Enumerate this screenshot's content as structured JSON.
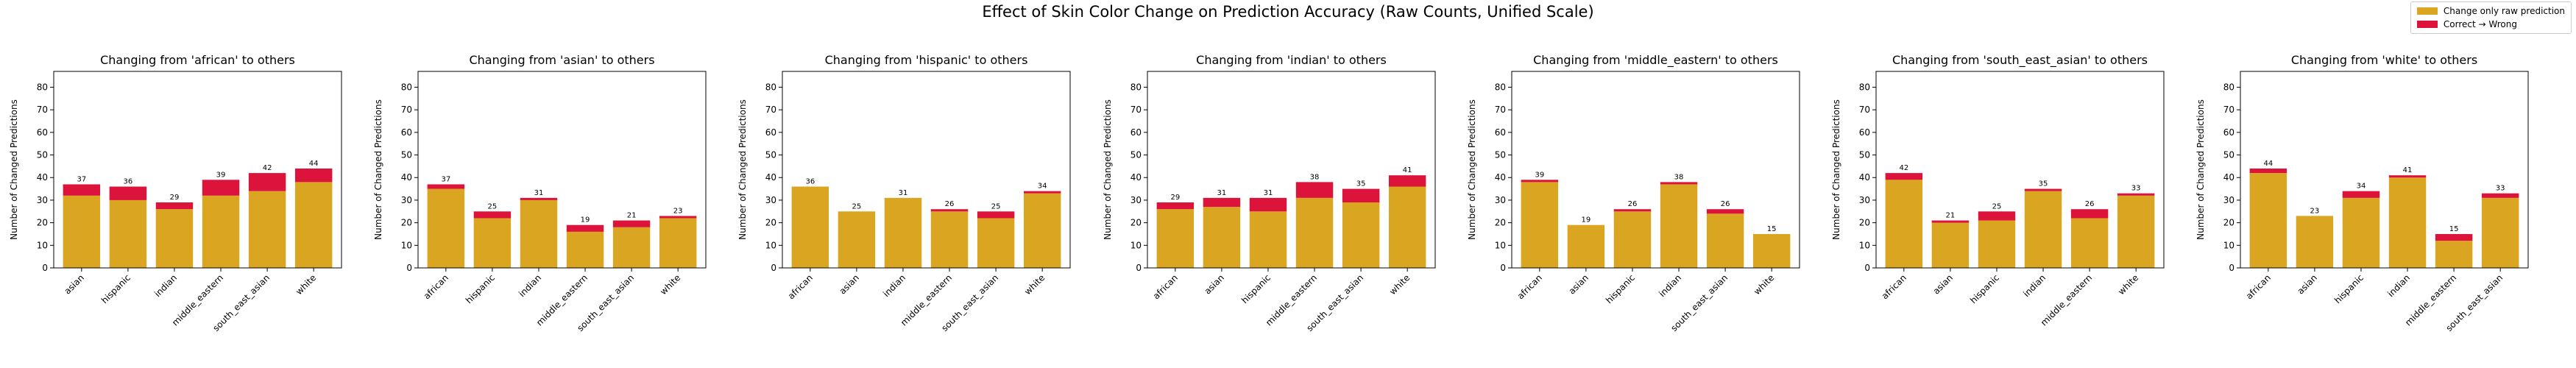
{
  "figure": {
    "suptitle": "Effect of Skin Color Change on Prediction Accuracy (Raw Counts, Unified Scale)",
    "legend": [
      {
        "label": "Change only raw prediction",
        "color": "#DAA520"
      },
      {
        "label": "Correct → Wrong",
        "color": "#DC143C"
      }
    ]
  },
  "chart_data": [
    {
      "type": "bar",
      "stacked": true,
      "title": "Changing from 'african' to others",
      "xlabel": "",
      "ylabel": "Number of Changed Predictions",
      "ylim": [
        0,
        87
      ],
      "yticks": [
        0,
        10,
        20,
        30,
        40,
        50,
        60,
        70,
        80
      ],
      "categories": [
        "asian",
        "hispanic",
        "indian",
        "middle_eastern",
        "south_east_asian",
        "white"
      ],
      "series": [
        {
          "name": "Change only raw prediction",
          "values": [
            32,
            30,
            26,
            32,
            34,
            38
          ]
        },
        {
          "name": "Correct → Wrong",
          "values": [
            5,
            6,
            3,
            7,
            8,
            6
          ]
        }
      ],
      "labels": [
        37,
        36,
        29,
        39,
        42,
        44
      ]
    },
    {
      "type": "bar",
      "stacked": true,
      "title": "Changing from 'asian' to others",
      "xlabel": "",
      "ylabel": "Number of Changed Predictions",
      "ylim": [
        0,
        87
      ],
      "yticks": [
        0,
        10,
        20,
        30,
        40,
        50,
        60,
        70,
        80
      ],
      "categories": [
        "african",
        "hispanic",
        "indian",
        "middle_eastern",
        "south_east_asian",
        "white"
      ],
      "series": [
        {
          "name": "Change only raw prediction",
          "values": [
            35,
            22,
            30,
            16,
            18,
            22
          ]
        },
        {
          "name": "Correct → Wrong",
          "values": [
            2,
            3,
            1,
            3,
            3,
            1
          ]
        }
      ],
      "labels": [
        37,
        25,
        31,
        19,
        21,
        23
      ]
    },
    {
      "type": "bar",
      "stacked": true,
      "title": "Changing from 'hispanic' to others",
      "xlabel": "",
      "ylabel": "Number of Changed Predictions",
      "ylim": [
        0,
        87
      ],
      "yticks": [
        0,
        10,
        20,
        30,
        40,
        50,
        60,
        70,
        80
      ],
      "categories": [
        "african",
        "asian",
        "indian",
        "middle_eastern",
        "south_east_asian",
        "white"
      ],
      "series": [
        {
          "name": "Change only raw prediction",
          "values": [
            36,
            25,
            31,
            25,
            22,
            33
          ]
        },
        {
          "name": "Correct → Wrong",
          "values": [
            0,
            0,
            0,
            1,
            3,
            1
          ]
        }
      ],
      "labels": [
        36,
        25,
        31,
        26,
        25,
        34
      ]
    },
    {
      "type": "bar",
      "stacked": true,
      "title": "Changing from 'indian' to others",
      "xlabel": "",
      "ylabel": "Number of Changed Predictions",
      "ylim": [
        0,
        87
      ],
      "yticks": [
        0,
        10,
        20,
        30,
        40,
        50,
        60,
        70,
        80
      ],
      "categories": [
        "african",
        "asian",
        "hispanic",
        "middle_eastern",
        "south_east_asian",
        "white"
      ],
      "series": [
        {
          "name": "Change only raw prediction",
          "values": [
            26,
            27,
            25,
            31,
            29,
            36
          ]
        },
        {
          "name": "Correct → Wrong",
          "values": [
            3,
            4,
            6,
            7,
            6,
            5
          ]
        }
      ],
      "labels": [
        29,
        31,
        31,
        38,
        35,
        41
      ]
    },
    {
      "type": "bar",
      "stacked": true,
      "title": "Changing from 'middle_eastern' to others",
      "xlabel": "",
      "ylabel": "Number of Changed Predictions",
      "ylim": [
        0,
        87
      ],
      "yticks": [
        0,
        10,
        20,
        30,
        40,
        50,
        60,
        70,
        80
      ],
      "categories": [
        "african",
        "asian",
        "hispanic",
        "indian",
        "south_east_asian",
        "white"
      ],
      "series": [
        {
          "name": "Change only raw prediction",
          "values": [
            38,
            19,
            25,
            37,
            24,
            15
          ]
        },
        {
          "name": "Correct → Wrong",
          "values": [
            1,
            0,
            1,
            1,
            2,
            0
          ]
        }
      ],
      "labels": [
        39,
        19,
        26,
        38,
        26,
        15
      ]
    },
    {
      "type": "bar",
      "stacked": true,
      "title": "Changing from 'south_east_asian' to others",
      "xlabel": "",
      "ylabel": "Number of Changed Predictions",
      "ylim": [
        0,
        87
      ],
      "yticks": [
        0,
        10,
        20,
        30,
        40,
        50,
        60,
        70,
        80
      ],
      "categories": [
        "african",
        "asian",
        "hispanic",
        "indian",
        "middle_eastern",
        "white"
      ],
      "series": [
        {
          "name": "Change only raw prediction",
          "values": [
            39,
            20,
            21,
            34,
            22,
            32
          ]
        },
        {
          "name": "Correct → Wrong",
          "values": [
            3,
            1,
            4,
            1,
            4,
            1
          ]
        }
      ],
      "labels": [
        42,
        21,
        25,
        35,
        26,
        33
      ]
    },
    {
      "type": "bar",
      "stacked": true,
      "title": "Changing from 'white' to others",
      "xlabel": "",
      "ylabel": "Number of Changed Predictions",
      "ylim": [
        0,
        87
      ],
      "yticks": [
        0,
        10,
        20,
        30,
        40,
        50,
        60,
        70,
        80
      ],
      "categories": [
        "african",
        "asian",
        "hispanic",
        "indian",
        "middle_eastern",
        "south_east_asian"
      ],
      "series": [
        {
          "name": "Change only raw prediction",
          "values": [
            42,
            23,
            31,
            40,
            12,
            31
          ]
        },
        {
          "name": "Correct → Wrong",
          "values": [
            2,
            0,
            3,
            1,
            3,
            2
          ]
        }
      ],
      "labels": [
        44,
        23,
        34,
        41,
        15,
        33
      ]
    }
  ]
}
